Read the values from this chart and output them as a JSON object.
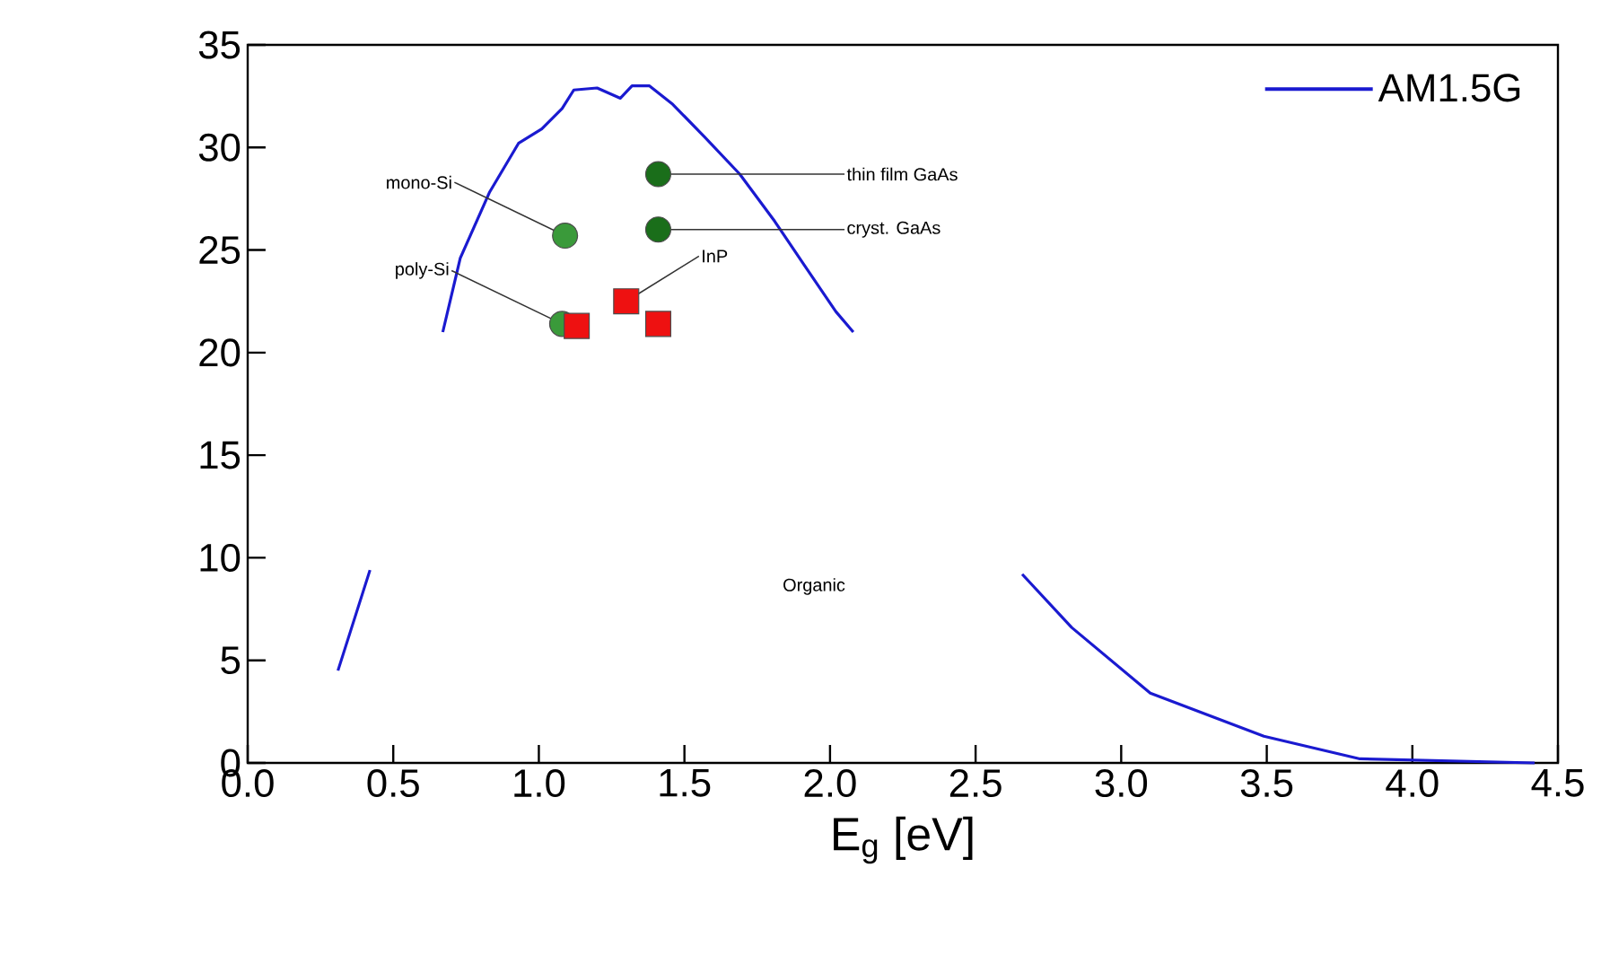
{
  "chart_data": {
    "type": "line",
    "xlabel": "E$_{g}$ [eV]",
    "xlim": [
      0,
      4.5
    ],
    "ylim": [
      0,
      35
    ],
    "xticks": [
      {
        "value": 0,
        "label": "0.0"
      },
      {
        "value": 0.5,
        "label": "0.5"
      },
      {
        "value": 1,
        "label": "1.0"
      },
      {
        "value": 1.5,
        "label": "1.5"
      },
      {
        "value": 2,
        "label": "2.0"
      },
      {
        "value": 2.5,
        "label": "2.5"
      },
      {
        "value": 3,
        "label": "3.0"
      },
      {
        "value": 3.5,
        "label": "3.5"
      },
      {
        "value": 4,
        "label": "4.0"
      },
      {
        "value": 4.5,
        "label": "4.5"
      }
    ],
    "yticks": [
      0,
      5,
      10,
      15,
      20,
      25,
      30,
      35
    ],
    "legend": "top right",
    "grid": false,
    "series": [
      {
        "name": "AM1.5G",
        "color": "#1a1ad0",
        "marker": "none",
        "x": [
          0.31,
          0.42,
          0.55,
          0.67,
          0.73,
          0.83,
          0.93,
          1.01,
          1.08,
          1.12,
          1.2,
          1.28,
          1.32,
          1.38,
          1.46,
          1.57,
          1.69,
          1.81,
          1.91,
          2.02,
          2.08,
          2.4,
          2.66,
          2.83,
          3.1,
          3.49,
          3.82,
          4.42
        ],
        "values": [
          4.5,
          9.4,
          null,
          21.0,
          24.6,
          27.8,
          30.2,
          30.9,
          31.9,
          32.8,
          32.9,
          32.4,
          33.0,
          33.0,
          32.1,
          30.5,
          28.7,
          26.4,
          24.3,
          22.0,
          21.0,
          null,
          9.2,
          6.6,
          3.4,
          1.3,
          0.2,
          0
        ]
      },
      {
        "type": "scatter",
        "color": "#3a9a3a",
        "marker": "circle",
        "x": [
          1.09,
          1.08
        ],
        "values": [
          25.7,
          21.4
        ]
      },
      {
        "type": "scatter",
        "color": "#1a6e1a",
        "marker": "circle",
        "x": [
          1.41,
          1.41
        ],
        "values": [
          28.7,
          26.0
        ]
      },
      {
        "type": "scatter",
        "color": "#ee1111",
        "marker": "square",
        "x": [
          1.13,
          1.3,
          1.41
        ],
        "values": [
          21.3,
          22.5,
          21.4
        ]
      }
    ],
    "annotations": [
      {
        "text": "mono-Si",
        "x": 1.09,
        "y": 25.7
      },
      {
        "text": "poly-Si",
        "x": 1.08,
        "y": 21.4
      },
      {
        "text": "thin film GaAs",
        "x": 1.41,
        "y": 28.7
      },
      {
        "text": "cryst. GaAs",
        "x": 1.41,
        "y": 26.0
      },
      {
        "text": "InP",
        "x": 1.3,
        "y": 22.5
      },
      "Organic"
    ]
  }
}
